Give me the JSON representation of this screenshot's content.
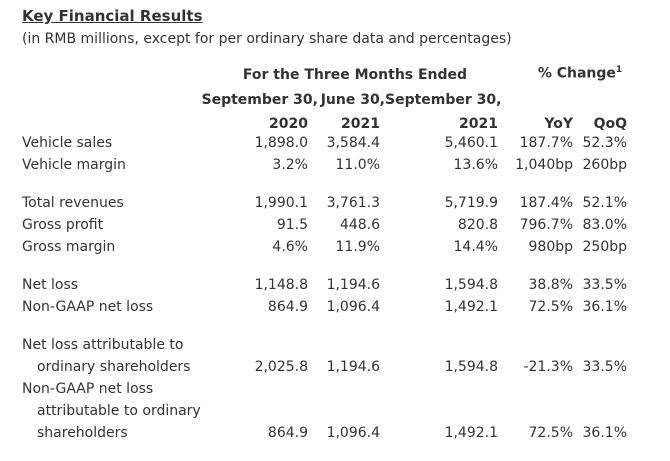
{
  "title": "Key Financial Results",
  "subtitle": "(in RMB millions, except for per ordinary share data and percentages)",
  "header": {
    "group": "For the Three Months Ended",
    "pct_change": "% Change",
    "pct_change_sup": "1",
    "col1_date": "September 30,",
    "col1_year": "2020",
    "col2_date": "June 30,",
    "col2_year": "2021",
    "col3_date": "September 30,",
    "col3_year": "2021",
    "yoy": "YoY",
    "qoq": "QoQ"
  },
  "rows": [
    {
      "label": "Vehicle sales",
      "v1": "1,898.0",
      "v2": "3,584.4",
      "v3": "5,460.1",
      "yoy": "187.7%",
      "qoq": "52.3%"
    },
    {
      "label": "Vehicle margin",
      "v1": "3.2%",
      "v2": "11.0%",
      "v3": "13.6%",
      "yoy": "1,040bp",
      "qoq": "260bp"
    },
    {
      "label": "Total revenues",
      "v1": "1,990.1",
      "v2": "3,761.3",
      "v3": "5,719.9",
      "yoy": "187.4%",
      "qoq": "52.1%"
    },
    {
      "label": "Gross profit",
      "v1": "91.5",
      "v2": "448.6",
      "v3": "820.8",
      "yoy": "796.7%",
      "qoq": "83.0%"
    },
    {
      "label": "Gross margin",
      "v1": "4.6%",
      "v2": "11.9%",
      "v3": "14.4%",
      "yoy": "980bp",
      "qoq": "250bp"
    },
    {
      "label": "Net loss",
      "v1": "1,148.8",
      "v2": "1,194.6",
      "v3": "1,594.8",
      "yoy": "38.8%",
      "qoq": "33.5%"
    },
    {
      "label": "Non-GAAP net loss",
      "v1": "864.9",
      "v2": "1,096.4",
      "v3": "1,492.1",
      "yoy": "72.5%",
      "qoq": "36.1%"
    },
    {
      "label_line1": "Net loss attributable to",
      "label_line2": "ordinary shareholders",
      "v1": "2,025.8",
      "v2": "1,194.6",
      "v3": "1,594.8",
      "yoy": "-21.3%",
      "qoq": "33.5%"
    },
    {
      "label_line1": "Non-GAAP net loss",
      "label_line2": "attributable to ordinary",
      "label_line3": "shareholders",
      "v1": "864.9",
      "v2": "1,096.4",
      "v3": "1,492.1",
      "yoy": "72.5%",
      "qoq": "36.1%"
    }
  ]
}
